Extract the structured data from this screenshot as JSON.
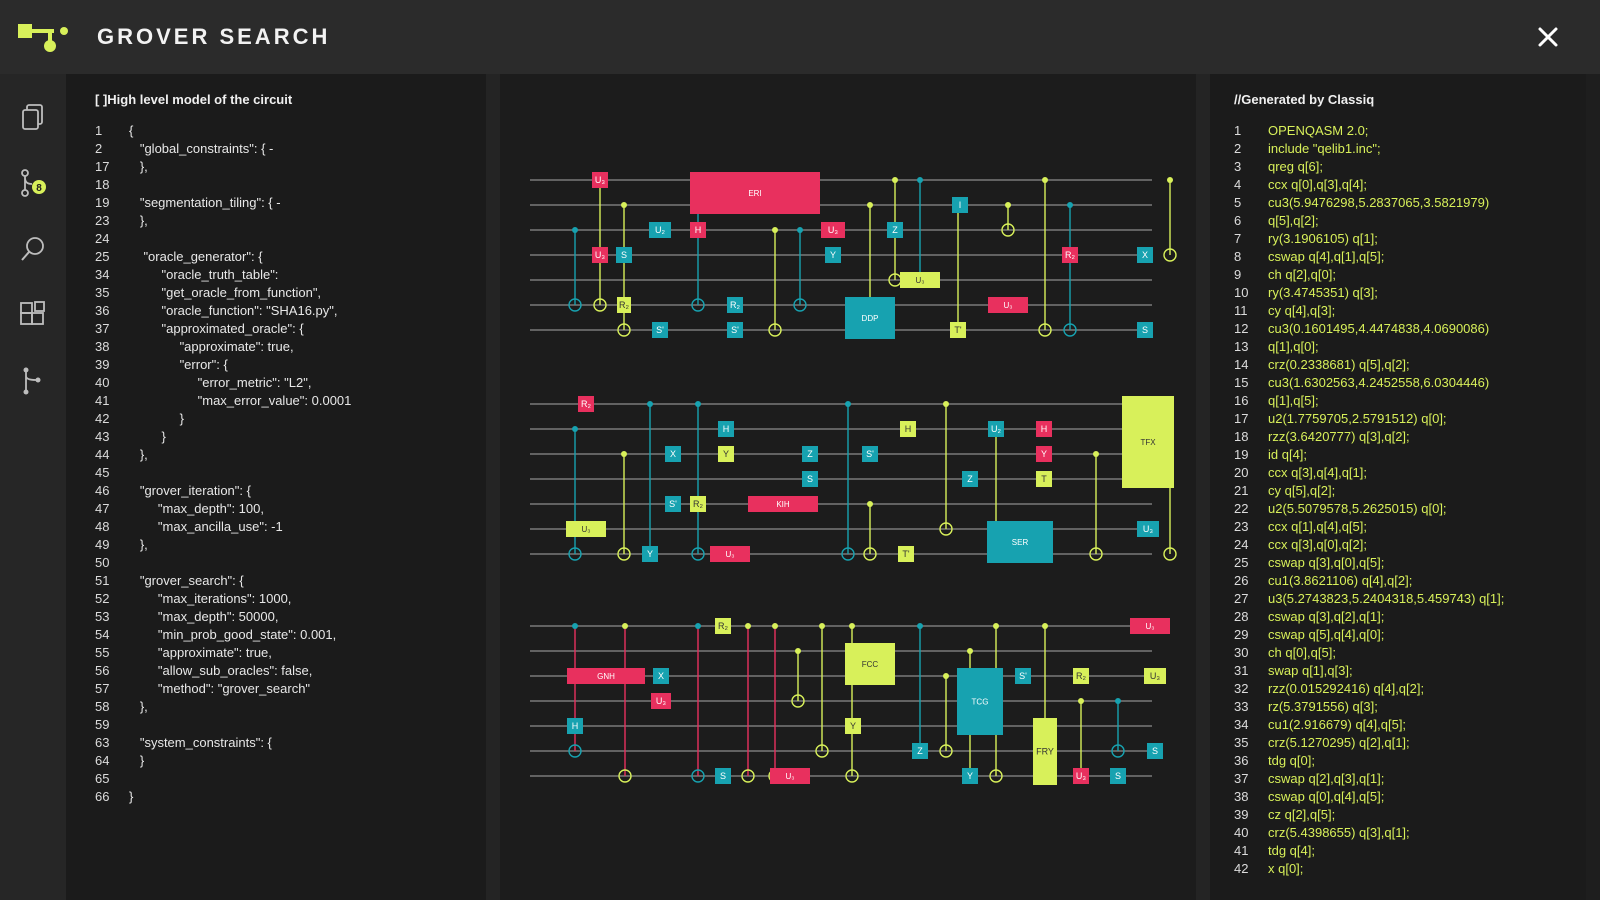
{
  "app": {
    "title": "GROVER SEARCH",
    "accent": "#d8f05a",
    "gate_colors": {
      "pink": "#e8305e",
      "teal": "#17a2b0",
      "lime": "#d8f05a"
    }
  },
  "icons": {
    "logo": "quantum-logo-icon",
    "close": "close-icon",
    "sidebar": [
      "documents-icon",
      "branch-badge-icon",
      "search-icon",
      "blocks-icon",
      "fork-icon"
    ],
    "badge_count": "8"
  },
  "left_panel": {
    "header": "[ ]High level model of the circuit",
    "lines": [
      {
        "n": "1",
        "t": "{"
      },
      {
        "n": "2",
        "t": "   \"global_constraints\": { -"
      },
      {
        "n": "17",
        "t": "   },"
      },
      {
        "n": "18",
        "t": ""
      },
      {
        "n": "19",
        "t": "   \"segmentation_tiling\": { -"
      },
      {
        "n": "23",
        "t": "   },"
      },
      {
        "n": "24",
        "t": ""
      },
      {
        "n": "25",
        "t": "    \"oracle_generator\": {"
      },
      {
        "n": "34",
        "t": "         \"oracle_truth_table\":"
      },
      {
        "n": "35",
        "t": "         \"get_oracle_from_function\","
      },
      {
        "n": "36",
        "t": "         \"oracle_function\": \"SHA16.py\","
      },
      {
        "n": "37",
        "t": "         \"approximated_oracle\": {"
      },
      {
        "n": "38",
        "t": "              \"approximate\": true,"
      },
      {
        "n": "39",
        "t": "              \"error\": {"
      },
      {
        "n": "40",
        "t": "                   \"error_metric\": \"L2\","
      },
      {
        "n": "41",
        "t": "                   \"max_error_value\": 0.0001"
      },
      {
        "n": "42",
        "t": "              }"
      },
      {
        "n": "43",
        "t": "         }"
      },
      {
        "n": "44",
        "t": "   },"
      },
      {
        "n": "45",
        "t": ""
      },
      {
        "n": "46",
        "t": "   \"grover_iteration\": {"
      },
      {
        "n": "47",
        "t": "        \"max_depth\": 100,"
      },
      {
        "n": "48",
        "t": "        \"max_ancilla_use\": -1"
      },
      {
        "n": "49",
        "t": "   },"
      },
      {
        "n": "50",
        "t": ""
      },
      {
        "n": "51",
        "t": "   \"grover_search\": {"
      },
      {
        "n": "52",
        "t": "        \"max_iterations\": 1000,"
      },
      {
        "n": "53",
        "t": "        \"max_depth\": 50000,"
      },
      {
        "n": "54",
        "t": "        \"min_prob_good_state\": 0.001,"
      },
      {
        "n": "55",
        "t": "        \"approximate\": true,"
      },
      {
        "n": "56",
        "t": "        \"allow_sub_oracles\": false,"
      },
      {
        "n": "57",
        "t": "        \"method\": \"grover_search\""
      },
      {
        "n": "58",
        "t": "   },"
      },
      {
        "n": "59",
        "t": ""
      },
      {
        "n": "63",
        "t": "   \"system_constraints\": {"
      },
      {
        "n": "64",
        "t": "   }"
      },
      {
        "n": "65",
        "t": ""
      },
      {
        "n": "66",
        "t": "}"
      }
    ]
  },
  "circuit": {
    "row1": {
      "gates": [
        {
          "label": "U₃",
          "color": "pink"
        },
        {
          "label": "U₃",
          "color": "pink"
        },
        {
          "label": "S",
          "color": "teal"
        },
        {
          "label": "R₂",
          "color": "lime"
        },
        {
          "label": "U₂",
          "color": "teal"
        },
        {
          "label": "S'",
          "color": "teal"
        },
        {
          "label": "H",
          "color": "pink"
        },
        {
          "label": "R₂",
          "color": "teal"
        },
        {
          "label": "S'",
          "color": "teal"
        },
        {
          "label": "ERI",
          "color": "pink"
        },
        {
          "label": "U₃",
          "color": "pink"
        },
        {
          "label": "Y",
          "color": "teal"
        },
        {
          "label": "DDP",
          "color": "teal"
        },
        {
          "label": "Z",
          "color": "teal"
        },
        {
          "label": "U₃",
          "color": "lime"
        },
        {
          "label": "I",
          "color": "teal"
        },
        {
          "label": "T'",
          "color": "lime"
        },
        {
          "label": "U₃",
          "color": "pink"
        },
        {
          "label": "R₂",
          "color": "pink"
        },
        {
          "label": "X",
          "color": "teal"
        },
        {
          "label": "S",
          "color": "teal"
        }
      ]
    },
    "row2": {
      "gates": [
        {
          "label": "R₂",
          "color": "pink"
        },
        {
          "label": "U₃",
          "color": "lime"
        },
        {
          "label": "Y",
          "color": "teal"
        },
        {
          "label": "X",
          "color": "teal"
        },
        {
          "label": "S'",
          "color": "teal"
        },
        {
          "label": "R₂",
          "color": "lime"
        },
        {
          "label": "H",
          "color": "teal"
        },
        {
          "label": "Y",
          "color": "lime"
        },
        {
          "label": "U₃",
          "color": "pink"
        },
        {
          "label": "KIH",
          "color": "pink"
        },
        {
          "label": "Z",
          "color": "teal"
        },
        {
          "label": "S",
          "color": "teal"
        },
        {
          "label": "S'",
          "color": "teal"
        },
        {
          "label": "T'",
          "color": "lime"
        },
        {
          "label": "H",
          "color": "lime"
        },
        {
          "label": "Z",
          "color": "teal"
        },
        {
          "label": "U₂",
          "color": "teal"
        },
        {
          "label": "SER",
          "color": "teal"
        },
        {
          "label": "H",
          "color": "pink"
        },
        {
          "label": "Y",
          "color": "pink"
        },
        {
          "label": "T",
          "color": "lime"
        },
        {
          "label": "TFX",
          "color": "lime"
        },
        {
          "label": "U₃",
          "color": "teal"
        }
      ]
    },
    "row3": {
      "gates": [
        {
          "label": "GNH",
          "color": "pink"
        },
        {
          "label": "H",
          "color": "teal"
        },
        {
          "label": "X",
          "color": "teal"
        },
        {
          "label": "U₃",
          "color": "pink"
        },
        {
          "label": "R₂",
          "color": "lime"
        },
        {
          "label": "S",
          "color": "teal"
        },
        {
          "label": "U₃",
          "color": "pink"
        },
        {
          "label": "FCC",
          "color": "lime"
        },
        {
          "label": "Y",
          "color": "lime"
        },
        {
          "label": "Z",
          "color": "teal"
        },
        {
          "label": "TCG",
          "color": "teal"
        },
        {
          "label": "Y",
          "color": "teal"
        },
        {
          "label": "S'",
          "color": "teal"
        },
        {
          "label": "FRY",
          "color": "lime"
        },
        {
          "label": "U₃",
          "color": "pink"
        },
        {
          "label": "R₂",
          "color": "lime"
        },
        {
          "label": "S",
          "color": "teal"
        },
        {
          "label": "U₃",
          "color": "pink"
        },
        {
          "label": "U₃",
          "color": "lime"
        },
        {
          "label": "S",
          "color": "teal"
        }
      ]
    }
  },
  "right_panel": {
    "header": "//Generated by Classiq",
    "lines": [
      {
        "n": "1",
        "t": "OPENQASM 2.0;"
      },
      {
        "n": "2",
        "t": "include \"qelib1.inc\";"
      },
      {
        "n": "3",
        "t": "qreg q[6];"
      },
      {
        "n": "4",
        "t": "ccx q[0],q[3],q[4];"
      },
      {
        "n": "5",
        "t": "cu3(5.9476298,5.2837065,3.5821979)"
      },
      {
        "n": "6",
        "t": "q[5],q[2];"
      },
      {
        "n": "7",
        "t": "ry(3.1906105) q[1];"
      },
      {
        "n": "8",
        "t": "cswap q[4],q[1],q[5];"
      },
      {
        "n": "9",
        "t": "ch q[2],q[0];"
      },
      {
        "n": "10",
        "t": "ry(3.4745351) q[3];"
      },
      {
        "n": "11",
        "t": "cy q[4],q[3];"
      },
      {
        "n": "12",
        "t": "cu3(0.1601495,4.4474838,4.0690086)"
      },
      {
        "n": "13",
        "t": "q[1],q[0];"
      },
      {
        "n": "14",
        "t": "crz(0.2338681) q[5],q[2];"
      },
      {
        "n": "15",
        "t": "cu3(1.6302563,4.2452558,6.0304446)"
      },
      {
        "n": "16",
        "t": "q[1],q[5];"
      },
      {
        "n": "17",
        "t": "u2(1.7759705,2.5791512) q[0];"
      },
      {
        "n": "18",
        "t": "rzz(3.6420777) q[3],q[2];"
      },
      {
        "n": "19",
        "t": "id q[4];"
      },
      {
        "n": "20",
        "t": "ccx q[3],q[4],q[1];"
      },
      {
        "n": "21",
        "t": "cy q[5],q[2];"
      },
      {
        "n": "22",
        "t": "u2(5.5079578,5.2625015) q[0];"
      },
      {
        "n": "23",
        "t": "ccx q[1],q[4],q[5];"
      },
      {
        "n": "24",
        "t": "ccx q[3],q[0],q[2];"
      },
      {
        "n": "25",
        "t": "cswap q[3],q[0],q[5];"
      },
      {
        "n": "26",
        "t": "cu1(3.8621106) q[4],q[2];"
      },
      {
        "n": "27",
        "t": "u3(5.2743823,5.2404318,5.459743) q[1];"
      },
      {
        "n": "28",
        "t": "cswap q[3],q[2],q[1];"
      },
      {
        "n": "29",
        "t": "cswap q[5],q[4],q[0];"
      },
      {
        "n": "30",
        "t": "ch q[0],q[5];"
      },
      {
        "n": "31",
        "t": "swap q[1],q[3];"
      },
      {
        "n": "32",
        "t": "rzz(0.015292416) q[4],q[2];"
      },
      {
        "n": "33",
        "t": "rz(5.3791556) q[3];"
      },
      {
        "n": "34",
        "t": "cu1(2.916679) q[4],q[5];"
      },
      {
        "n": "35",
        "t": "crz(5.1270295) q[2],q[1];"
      },
      {
        "n": "36",
        "t": "tdg q[0];"
      },
      {
        "n": "37",
        "t": "cswap q[2],q[3],q[1];"
      },
      {
        "n": "38",
        "t": "cswap q[0],q[4],q[5];"
      },
      {
        "n": "39",
        "t": "cz q[2],q[5];"
      },
      {
        "n": "40",
        "t": "crz(5.4398655) q[3],q[1];"
      },
      {
        "n": "41",
        "t": "tdg q[4];"
      },
      {
        "n": "42",
        "t": "x q[0];"
      }
    ]
  }
}
